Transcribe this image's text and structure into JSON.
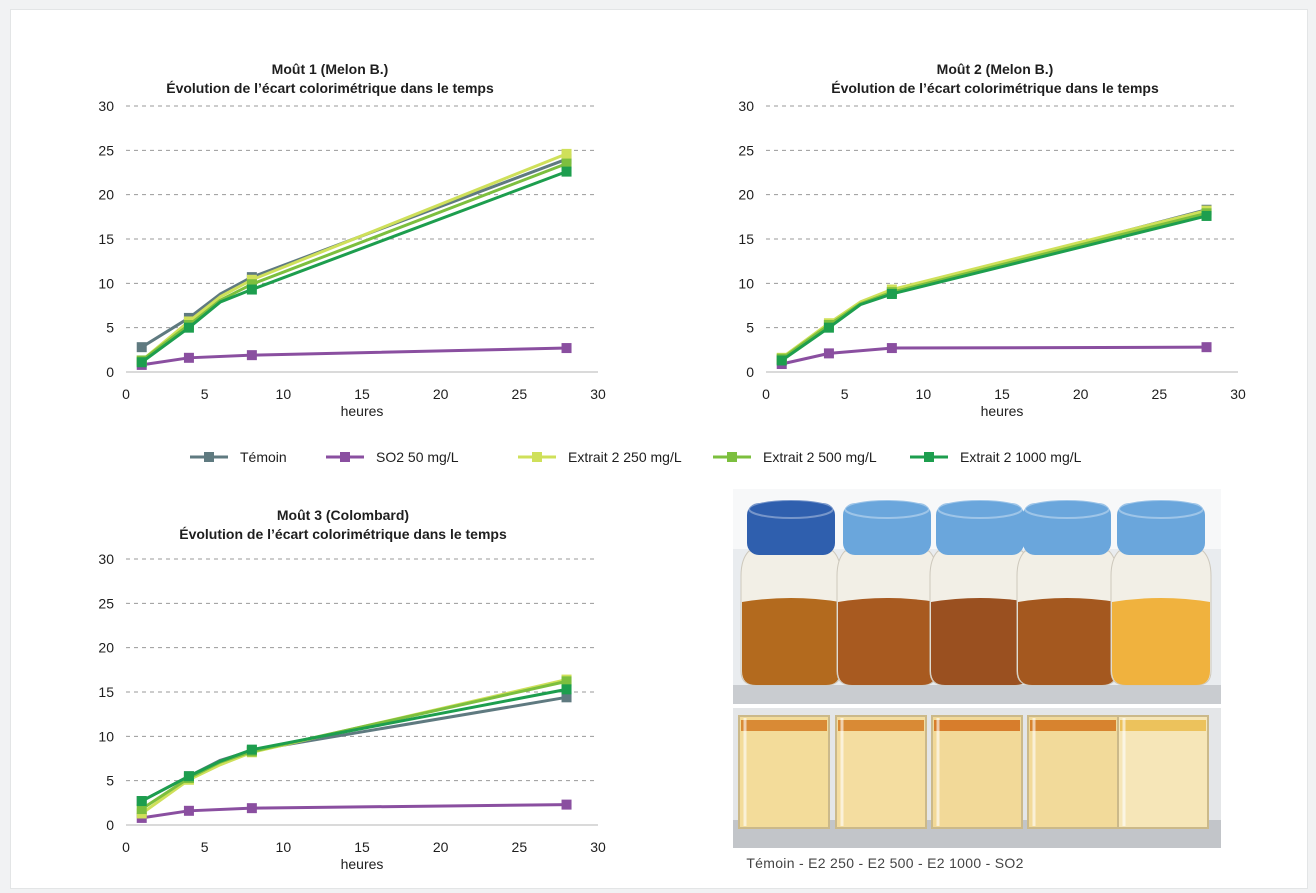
{
  "chart_data": [
    {
      "type": "line",
      "title": [
        "Moût 1 (Melon B.)",
        "Évolution de l’écart colorimétrique dans le temps"
      ],
      "xlabel": "heures",
      "ylabel": "",
      "xlim": [
        0,
        30
      ],
      "ylim": [
        0,
        30
      ],
      "xticks": [
        0,
        5,
        10,
        15,
        20,
        25,
        30
      ],
      "yticks": [
        0,
        5,
        10,
        15,
        20,
        25,
        30
      ],
      "grid": "horizontal-dashed",
      "series": [
        {
          "name": "Témoin",
          "color": "#5f7a80",
          "points": [
            [
              1,
              2.8
            ],
            [
              4,
              6.1
            ],
            [
              6,
              8.8
            ],
            [
              8,
              10.7
            ],
            [
              28,
              24.0
            ]
          ]
        },
        {
          "name": "SO2 50 mg/L",
          "color": "#8a4fa0",
          "points": [
            [
              1,
              0.8
            ],
            [
              4,
              1.6
            ],
            [
              8,
              1.9
            ],
            [
              28,
              2.7
            ]
          ]
        },
        {
          "name": "Extrait 2 250 mg/L",
          "color": "#cfe05a",
          "points": [
            [
              1,
              1.3
            ],
            [
              4,
              5.7
            ],
            [
              6,
              8.5
            ],
            [
              8,
              10.4
            ],
            [
              28,
              24.6
            ]
          ]
        },
        {
          "name": "Extrait 2 500 mg/L",
          "color": "#7cbf3e",
          "points": [
            [
              1,
              1.3
            ],
            [
              4,
              5.3
            ],
            [
              6,
              8.1
            ],
            [
              8,
              9.9
            ],
            [
              28,
              23.5
            ]
          ]
        },
        {
          "name": "Extrait 2 1000 mg/L",
          "color": "#1d9e4e",
          "points": [
            [
              1,
              1.1
            ],
            [
              4,
              5.0
            ],
            [
              6,
              7.9
            ],
            [
              8,
              9.3
            ],
            [
              28,
              22.6
            ]
          ]
        }
      ]
    },
    {
      "type": "line",
      "title": [
        "Moût 2 (Melon B.)",
        "Évolution de l’écart colorimétrique dans le temps"
      ],
      "xlabel": "heures",
      "ylabel": "",
      "xlim": [
        0,
        30
      ],
      "ylim": [
        0,
        30
      ],
      "xticks": [
        0,
        5,
        10,
        15,
        20,
        25,
        30
      ],
      "yticks": [
        0,
        5,
        10,
        15,
        20,
        25,
        30
      ],
      "grid": "horizontal-dashed",
      "series": [
        {
          "name": "Témoin",
          "color": "#5f7a80",
          "points": [
            [
              1,
              1.4
            ],
            [
              4,
              5.3
            ],
            [
              6,
              7.7
            ],
            [
              8,
              9.0
            ],
            [
              28,
              18.3
            ]
          ]
        },
        {
          "name": "SO2 50 mg/L",
          "color": "#8a4fa0",
          "points": [
            [
              1,
              0.9
            ],
            [
              4,
              2.1
            ],
            [
              8,
              2.7
            ],
            [
              28,
              2.8
            ]
          ]
        },
        {
          "name": "Extrait 2 250 mg/L",
          "color": "#cfe05a",
          "points": [
            [
              1,
              1.6
            ],
            [
              4,
              5.5
            ],
            [
              6,
              7.9
            ],
            [
              8,
              9.3
            ],
            [
              28,
              18.2
            ]
          ]
        },
        {
          "name": "Extrait 2 500 mg/L",
          "color": "#7cbf3e",
          "points": [
            [
              1,
              1.5
            ],
            [
              4,
              5.3
            ],
            [
              6,
              7.7
            ],
            [
              8,
              9.0
            ],
            [
              28,
              17.9
            ]
          ]
        },
        {
          "name": "Extrait 2 1000 mg/L",
          "color": "#1d9e4e",
          "points": [
            [
              1,
              1.3
            ],
            [
              4,
              5.0
            ],
            [
              6,
              7.6
            ],
            [
              8,
              8.8
            ],
            [
              28,
              17.6
            ]
          ]
        }
      ]
    },
    {
      "type": "line",
      "title": [
        "Moût 3 (Colombard)",
        "Évolution de l’écart colorimétrique dans le temps"
      ],
      "xlabel": "heures",
      "ylabel": "",
      "xlim": [
        0,
        30
      ],
      "ylim": [
        0,
        30
      ],
      "xticks": [
        0,
        5,
        10,
        15,
        20,
        25,
        30
      ],
      "yticks": [
        0,
        5,
        10,
        15,
        20,
        25,
        30
      ],
      "grid": "horizontal-dashed",
      "series": [
        {
          "name": "Témoin",
          "color": "#5f7a80",
          "points": [
            [
              1,
              2.7
            ],
            [
              4,
              5.5
            ],
            [
              6,
              7.3
            ],
            [
              8,
              8.4
            ],
            [
              28,
              14.4
            ]
          ]
        },
        {
          "name": "SO2 50 mg/L",
          "color": "#8a4fa0",
          "points": [
            [
              1,
              0.8
            ],
            [
              4,
              1.6
            ],
            [
              8,
              1.9
            ],
            [
              28,
              2.3
            ]
          ]
        },
        {
          "name": "Extrait 2 250 mg/L",
          "color": "#cfe05a",
          "points": [
            [
              1,
              1.3
            ],
            [
              4,
              5.1
            ],
            [
              6,
              6.8
            ],
            [
              8,
              8.2
            ],
            [
              28,
              16.4
            ]
          ]
        },
        {
          "name": "Extrait 2 500 mg/L",
          "color": "#7cbf3e",
          "points": [
            [
              1,
              1.8
            ],
            [
              4,
              5.3
            ],
            [
              6,
              7.1
            ],
            [
              8,
              8.3
            ],
            [
              28,
              16.2
            ]
          ]
        },
        {
          "name": "Extrait 2 1000 mg/L",
          "color": "#1d9e4e",
          "points": [
            [
              1,
              2.7
            ],
            [
              4,
              5.5
            ],
            [
              6,
              7.2
            ],
            [
              8,
              8.5
            ],
            [
              28,
              15.3
            ]
          ]
        }
      ]
    }
  ],
  "legend": {
    "placement": "between-top-and-bottom-charts",
    "items": [
      {
        "label": "Témoin",
        "color": "#5f7a80"
      },
      {
        "label": "SO2 50 mg/L",
        "color": "#8a4fa0"
      },
      {
        "label": "Extrait 2 250 mg/L",
        "color": "#cfe05a"
      },
      {
        "label": "Extrait 2 500 mg/L",
        "color": "#7cbf3e"
      },
      {
        "label": "Extrait 2 1000 mg/L",
        "color": "#1d9e4e"
      }
    ]
  },
  "photo": {
    "caption": "Témoin  -  E2 250  -  E2 500  -  E2 1000  -  SO2",
    "bottles": [
      {
        "cap": "#2f5fae",
        "liquid": "#b36a1e"
      },
      {
        "cap": "#6aa6dc",
        "liquid": "#a85a20"
      },
      {
        "cap": "#6aa6dc",
        "liquid": "#9a5020"
      },
      {
        "cap": "#6aa6dc",
        "liquid": "#a4581f"
      },
      {
        "cap": "#6aa6dc",
        "liquid": "#f0b23e"
      }
    ],
    "cuvettes": [
      {
        "band": "#d98a35",
        "liquid": "#f3dc9a"
      },
      {
        "band": "#d98a35",
        "liquid": "#f4dda0"
      },
      {
        "band": "#d77d2c",
        "liquid": "#f2d998"
      },
      {
        "band": "#d7832f",
        "liquid": "#f2da9a"
      },
      {
        "band": "#ecc25c",
        "liquid": "#f6e6b8"
      }
    ]
  }
}
